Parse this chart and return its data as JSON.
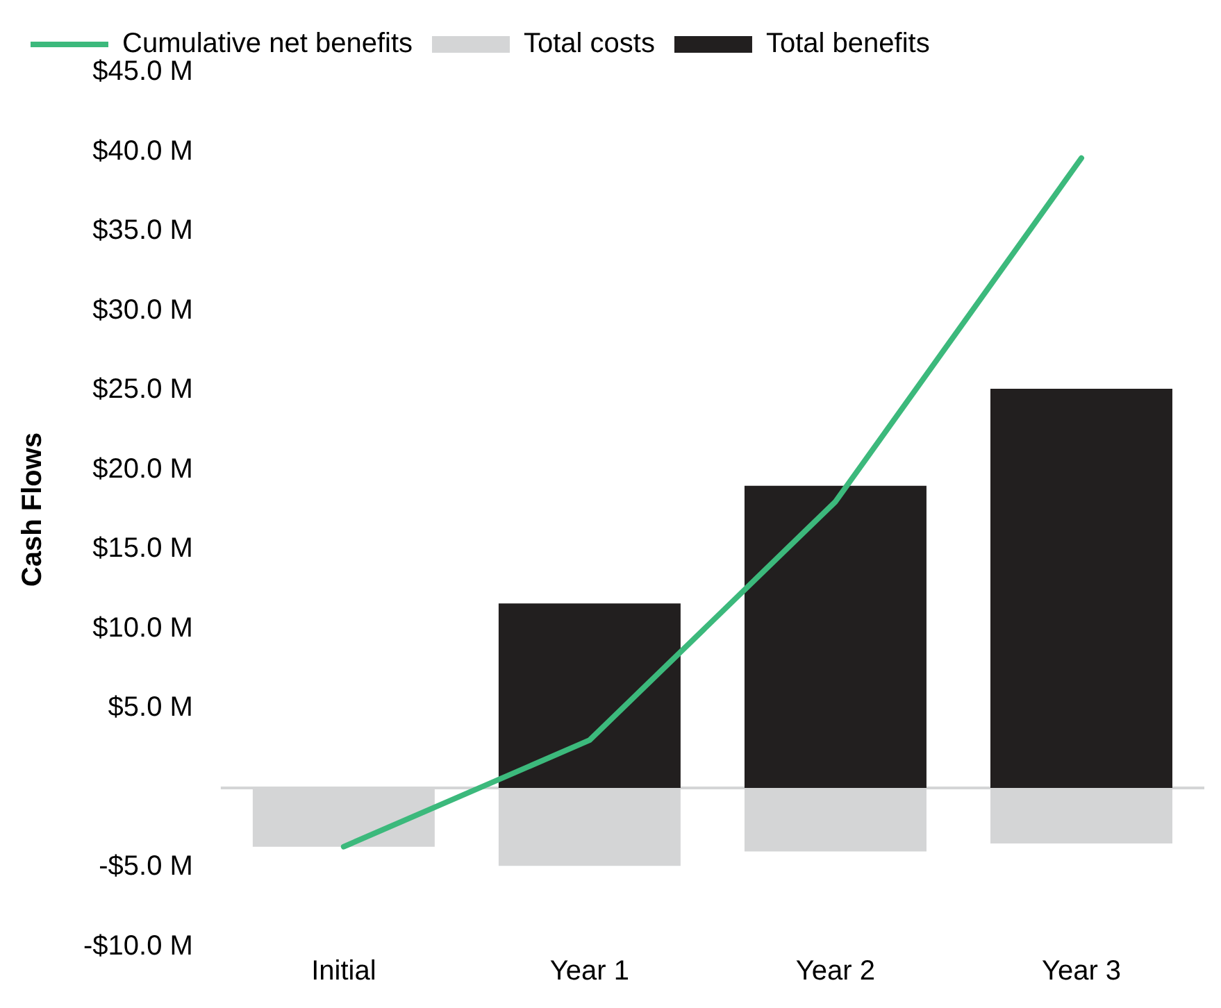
{
  "chart_data": {
    "type": "bar",
    "stacked": true,
    "ylabel": "Cash Flows",
    "categories": [
      "Initial",
      "Year 1",
      "Year 2",
      "Year 3"
    ],
    "series": [
      {
        "name": "Total costs",
        "color": "#d4d5d6",
        "values": [
          -3.7,
          -4.9,
          -4.0,
          -3.5
        ]
      },
      {
        "name": "Total benefits",
        "color": "#221f1f",
        "values": [
          null,
          11.6,
          19.0,
          25.1
        ]
      },
      {
        "name": "Cumulative net benefits",
        "type": "line",
        "color": "#3cb97c",
        "values": [
          -3.7,
          3.0,
          18.0,
          39.6
        ],
        "marker": "none",
        "line_style": "solid"
      }
    ],
    "ylim": [
      -10,
      45
    ],
    "yticks": [
      {
        "value": -10,
        "label": "-$10.0 M"
      },
      {
        "value": -5,
        "label": "-$5.0 M"
      },
      {
        "value": 5,
        "label": "$5.0 M"
      },
      {
        "value": 10,
        "label": "$10.0 M"
      },
      {
        "value": 15,
        "label": "$15.0 M"
      },
      {
        "value": 20,
        "label": "$20.0 M"
      },
      {
        "value": 25,
        "label": "$25.0 M"
      },
      {
        "value": 30,
        "label": "$30.0 M"
      },
      {
        "value": 35,
        "label": "$35.0 M"
      },
      {
        "value": 40,
        "label": "$40.0 M"
      },
      {
        "value": 45,
        "label": "$45.0 M"
      }
    ],
    "ref_lines": [
      {
        "axis": "y",
        "value": 0,
        "color": "#d4d5d6"
      }
    ],
    "grid": false,
    "legend": "top left"
  }
}
